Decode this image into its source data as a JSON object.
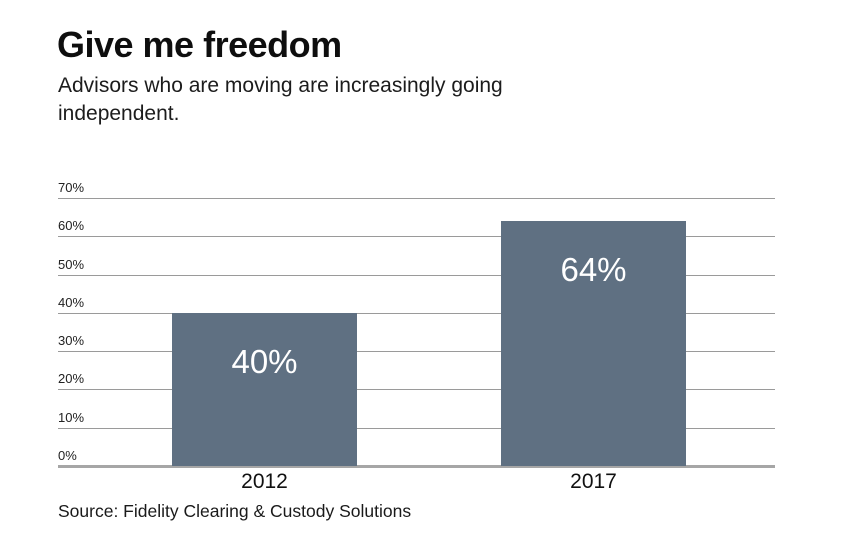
{
  "chart_data": {
    "type": "bar",
    "title": "Give me freedom",
    "subtitle": "Advisors who are moving are increasingly going independent.",
    "subtitle_lines": [
      "Advisors who are moving are increasingly going",
      "independent."
    ],
    "categories": [
      "2012",
      "2017"
    ],
    "values": [
      40,
      64
    ],
    "value_labels": [
      "40%",
      "64%"
    ],
    "ylim": [
      0,
      70
    ],
    "ytick_step": 10,
    "ytick_labels": [
      "0%",
      "10%",
      "20%",
      "30%",
      "40%",
      "50%",
      "60%",
      "70%"
    ],
    "grid": true,
    "legend": "none",
    "bar_color": "#5f7082",
    "bar_label_color": "#ffffff",
    "source": "Source: Fidelity Clearing & Custody Solutions"
  }
}
